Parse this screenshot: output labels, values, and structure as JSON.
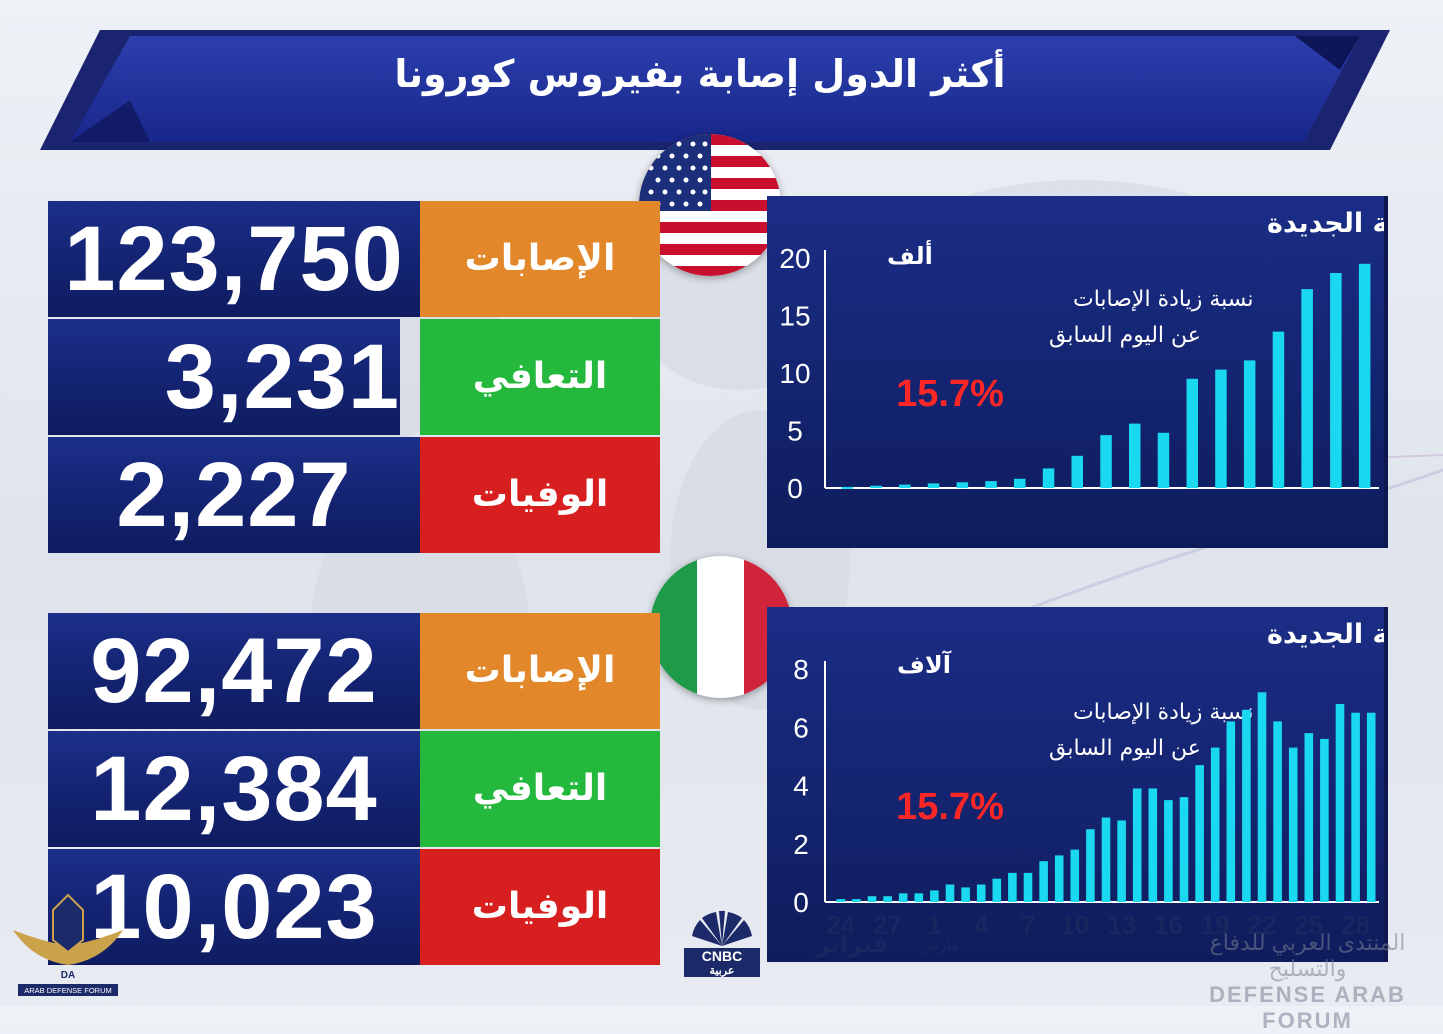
{
  "title": "أكثر الدول إصابة بفيروس كورونا",
  "colors": {
    "navy": "#142473",
    "cases": "#e2882b",
    "recovered": "#24b83d",
    "deaths": "#d81f1f",
    "bar": "#19d8f0",
    "percent": "#ff2626"
  },
  "usa": {
    "flag": "usa-flag",
    "cases_label": "الإصابات",
    "cases_value": "123,750",
    "recovered_label": "التعافي",
    "recovered_value": "3,231",
    "deaths_label": "الوفيات",
    "deaths_value": "2,227"
  },
  "italy": {
    "flag": "italy-flag",
    "cases_label": "الإصابات",
    "cases_value": "92,472",
    "recovered_label": "التعافي",
    "recovered_value": "12,384",
    "deaths_label": "الوفيات",
    "deaths_value": "10,023"
  },
  "chart_data": [
    {
      "type": "bar",
      "title": "الحالات اليومية الجديدة",
      "unit_label": "ألف",
      "annotation_line1": "نسبة زيادة الإصابات",
      "annotation_line2": "عن اليوم السابق",
      "annotation_value": "15.7%",
      "ylim": [
        0,
        20
      ],
      "yticks": [
        0,
        5,
        10,
        15,
        20
      ],
      "values": [
        0.1,
        0.2,
        0.3,
        0.4,
        0.5,
        0.6,
        0.8,
        1.7,
        2.8,
        4.6,
        5.6,
        4.8,
        9.5,
        10.3,
        11.1,
        13.6,
        17.3,
        18.7,
        19.5
      ],
      "grid": false
    },
    {
      "type": "bar",
      "title": "الحالات اليومية الجديدة",
      "unit_label": "آلاف",
      "annotation_line1": "نسبة زيادة الإصابات",
      "annotation_line2": "عن اليوم السابق",
      "annotation_value": "15.7%",
      "ylim": [
        0,
        8
      ],
      "yticks": [
        0,
        2,
        4,
        6,
        8
      ],
      "xtick_labels": [
        "24",
        "27",
        "1",
        "4",
        "7",
        "10",
        "13",
        "16",
        "19",
        "22",
        "25",
        "28"
      ],
      "month_labels": [
        "فبراير",
        "مارس"
      ],
      "values": [
        0.1,
        0.1,
        0.2,
        0.2,
        0.3,
        0.3,
        0.4,
        0.6,
        0.5,
        0.6,
        0.8,
        1.0,
        1.0,
        1.4,
        1.6,
        1.8,
        2.5,
        2.9,
        2.8,
        3.9,
        3.9,
        3.5,
        3.6,
        4.7,
        5.3,
        6.2,
        6.6,
        7.2,
        6.2,
        5.3,
        5.8,
        5.6,
        6.8,
        6.5,
        6.5
      ],
      "grid": false
    }
  ],
  "logo_text": "CNBC",
  "logo_subtitle": "عربية",
  "watermark_arabic": "المنتدى العربي للدفاع والتسليح",
  "watermark_english": "DEFENSE ARAB FORUM",
  "watermark_left_small": "ARAB DEFENSE FORUM",
  "watermark_left_letters": "DA"
}
